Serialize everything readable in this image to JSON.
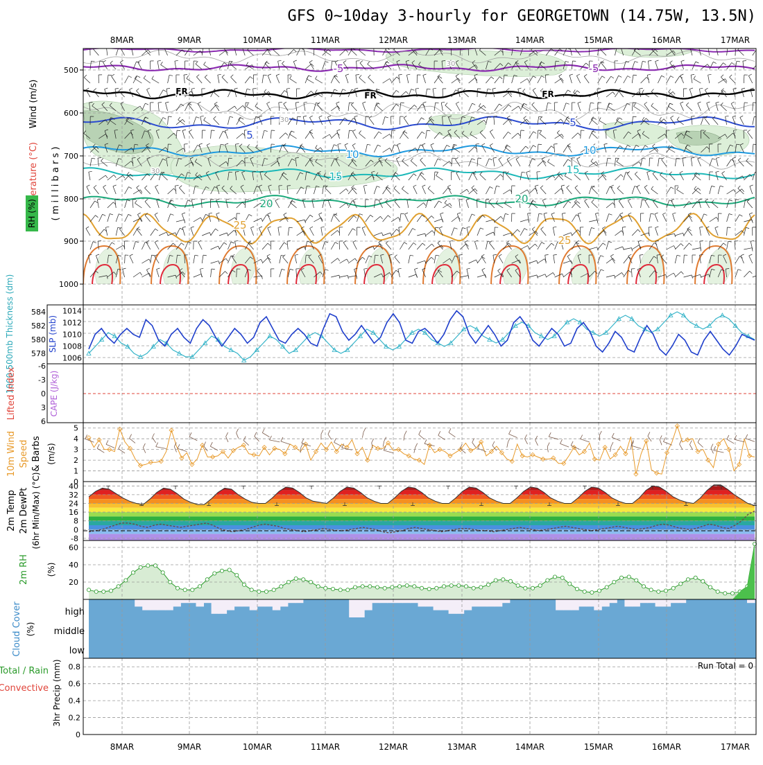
{
  "title": "GFS 0~10day 3-hourly for GEORGETOWN (14.75W, 13.5N)",
  "dates": [
    "8MAR",
    "9MAR",
    "10MAR",
    "11MAR",
    "12MAR",
    "13MAR",
    "14MAR",
    "15MAR",
    "16MAR",
    "17MAR"
  ],
  "panels": {
    "upper": {
      "ylabel_wind": "Wind (m/s)",
      "ylabel_temp": "Temperature (°C)",
      "ylabel_rh": "RH (%)",
      "ylabel_mb": "( m i l l i b a r s )",
      "levels": [
        "500",
        "600",
        "700",
        "800",
        "900",
        "1000"
      ],
      "freezing_label": "FR",
      "isotherm_labels": [
        "-5",
        "-5",
        "5",
        "5",
        "10",
        "10",
        "15",
        "15",
        "20",
        "20",
        "25",
        "25",
        "30",
        "30",
        "30"
      ]
    },
    "slp": {
      "ylabel_thick": "1000-500mb Thickness (dm)",
      "ylabel_slp": "SLP (mb)",
      "thick_ticks": [
        "584",
        "582",
        "580",
        "578"
      ],
      "slp_ticks": [
        "1014",
        "1012",
        "1010",
        "1008",
        "1006"
      ]
    },
    "cape": {
      "ylabel_li": "Lifted Index",
      "ylabel_cape": "CAPE (J/kg)",
      "ticks": [
        "-6",
        "-3",
        "0",
        "3",
        "6"
      ]
    },
    "wind10": {
      "ylabel1": "10m Wind",
      "ylabel2": "Speed",
      "ylabel3": "& Barbs",
      "ylabel_unit": "(m/s)",
      "ticks": [
        "5",
        "4",
        "3",
        "2",
        "1",
        "0"
      ]
    },
    "temp": {
      "ylabel1": "2m Temp",
      "ylabel2": "2m DewPt",
      "ylabel3": "(6hr Min/Max) (°C)",
      "ticks": [
        "40",
        "32",
        "24",
        "16",
        "8",
        "0",
        "-8"
      ]
    },
    "rh": {
      "ylabel": "2m RH",
      "ylabel_unit": "(%)",
      "ticks": [
        "60",
        "40",
        "20"
      ]
    },
    "cloud": {
      "ylabel": "Cloud Cover",
      "ylabel_unit": "(%)",
      "levels": [
        "high",
        "middle",
        "low"
      ]
    },
    "precip": {
      "ylabel1": "Total / Rain",
      "ylabel2": "Convective",
      "ylabel3": "3hr Precip (mm)",
      "ticks": [
        "0.8",
        "0.6",
        "0.4",
        "0.2",
        "0"
      ],
      "run_total": "Run Total = 0"
    }
  },
  "colors": {
    "slp": "#1f3fcc",
    "thickness": "#33b3c8",
    "wind": "#e89a2a",
    "rh_fill": "#d8ecd4",
    "rh_line": "#2a9a2a",
    "cloud": "#6aa8d4",
    "cloud_clear": "#f4eef8",
    "freezing": "#000000"
  },
  "chart_data": [
    {
      "type": "line",
      "name": "SLP panel",
      "x_start": "8MAR",
      "step_hours": 3,
      "series": [
        {
          "name": "SLP (mb)",
          "values": [
            1007.5,
            1010,
            1011,
            1009.5,
            1008.5,
            1010,
            1011,
            1010,
            1009.5,
            1012.5,
            1011.5,
            1009,
            1008,
            1010,
            1011,
            1009.5,
            1008.5,
            1011,
            1012.5,
            1011.5,
            1009.5,
            1008,
            1009.5,
            1011,
            1010,
            1008.5,
            1009.5,
            1012,
            1013,
            1011,
            1009,
            1008.5,
            1010,
            1011,
            1010,
            1008.5,
            1008,
            1011,
            1013.5,
            1013,
            1010.5,
            1009,
            1010,
            1011.5,
            1010,
            1008.5,
            1009.5,
            1012,
            1013.5,
            1012,
            1009,
            1008.5,
            1010.5,
            1011,
            1010,
            1008.5,
            1010,
            1012.5,
            1014,
            1013,
            1010,
            1008.5,
            1010,
            1011.5,
            1010,
            1008,
            1009,
            1012,
            1013,
            1011.5,
            1009,
            1008,
            1009.5,
            1011,
            1010,
            1008,
            1008.5,
            1011,
            1012,
            1010.5,
            1008,
            1007,
            1008.5,
            1010.5,
            1009.5,
            1007.5,
            1007,
            1009.5,
            1011.5,
            1010,
            1007.5,
            1006.5,
            1008,
            1010,
            1009,
            1007,
            1006.5,
            1009,
            1010.5,
            1009,
            1007.5,
            1006.5,
            1008,
            1010,
            1009.5,
            1009
          ]
        },
        {
          "name": "1000-500mb Thickness (dm)",
          "values": [
            578,
            579,
            580,
            581,
            580.5,
            579.5,
            579,
            578,
            577.5,
            578,
            579,
            580,
            579.5,
            578.5,
            578,
            577.5,
            577.5,
            578.5,
            579.5,
            580.5,
            580,
            579,
            578.5,
            578,
            577,
            577.5,
            578.5,
            579.5,
            580.5,
            580,
            579,
            578,
            578.5,
            579.5,
            580.5,
            581,
            580.5,
            579.5,
            578.5,
            578,
            578.5,
            579.5,
            580.5,
            581.5,
            581,
            580,
            579,
            578.5,
            579,
            580,
            581,
            581.5,
            581,
            580,
            579.5,
            579,
            579.5,
            580.5,
            581.5,
            582,
            581.5,
            580.5,
            580,
            579.5,
            580,
            581,
            582,
            582.5,
            582,
            581,
            580.5,
            580,
            580.5,
            581.5,
            582.5,
            583,
            582.5,
            581.5,
            581,
            580.5,
            581,
            582,
            583,
            583.5,
            583,
            582,
            581.5,
            581,
            581.5,
            582.5,
            583.5,
            584,
            583.5,
            582.5,
            582,
            581.5,
            582,
            583,
            583.5,
            583,
            582,
            581,
            580.5,
            580
          ]
        }
      ],
      "slp_range": [
        1005,
        1015
      ],
      "thickness_range": [
        576.5,
        585
      ]
    },
    {
      "type": "line",
      "name": "Lifted Index",
      "ylim": [
        -6,
        6
      ],
      "values": [
        0
      ]
    },
    {
      "type": "line",
      "name": "10m Wind Speed",
      "ylim": [
        0,
        5.5
      ],
      "values": [
        4.1,
        3.2,
        3.9,
        3.0,
        3.0,
        2.8,
        4.9,
        3.7,
        3.1,
        2.1,
        1.5,
        1.6,
        1.8,
        1.8,
        1.9,
        2.8,
        4.8,
        3.3,
        2.2,
        2.7,
        1.6,
        2.1,
        3.4,
        2.3,
        2.3,
        2.4,
        2.8,
        2.2,
        2.9,
        3.2,
        3.4,
        2.6,
        2.5,
        2.4,
        3.2,
        2.5,
        3.1,
        3.0,
        2.6,
        3.5,
        3.2,
        2.8,
        3.5,
        2.0,
        2.8,
        3.6,
        3.0,
        3.7,
        2.8,
        3.5,
        3.2,
        3.9,
        2.6,
        3.2,
        2.0,
        3.4,
        3.1,
        3.1,
        3.6,
        2.9,
        3.0,
        2.6,
        2.4,
        2.1,
        2.0,
        1.6,
        3.4,
        2.7,
        3.0,
        2.8,
        2.4,
        2.7,
        3.0,
        3.6,
        2.9,
        3.1,
        3.7,
        2.4,
        2.8,
        3.3,
        2.7,
        2.1,
        1.9,
        3.5,
        2.4,
        2.3,
        2.5,
        2.3,
        2.1,
        2.1,
        2.2,
        1.7,
        1.7,
        2.4,
        3.2,
        2.5,
        2.8,
        3.6,
        2.1,
        2.0,
        3.2,
        2.1,
        2.5,
        3.3,
        2.6,
        4.2,
        0.7,
        2.6,
        3.8,
        1.1,
        0.8,
        0.7,
        2.7,
        3.7,
        5.2,
        3.7,
        3.9,
        4.0,
        2.8,
        3.0,
        2.0,
        1.3,
        3.5,
        4.0,
        3.0,
        1.0,
        1.6,
        4.0,
        2.4,
        2.3
      ]
    },
    {
      "type": "area",
      "name": "2m Temp",
      "ylim": [
        -10,
        44
      ],
      "x_start": "8MAR",
      "step_hours": 3,
      "series": [
        {
          "name": "2m Temp",
          "values": [
            30,
            35,
            38,
            37,
            33,
            29,
            26,
            24,
            23,
            28,
            34,
            38,
            37,
            33,
            28,
            25,
            23,
            23,
            28,
            34,
            38,
            37,
            32,
            28,
            25,
            24,
            24,
            29,
            35,
            39,
            38,
            34,
            29,
            26,
            25,
            24,
            29,
            35,
            39,
            38,
            34,
            29,
            26,
            24,
            24,
            29,
            35,
            39,
            38,
            34,
            29,
            26,
            24,
            24,
            29,
            35,
            39,
            38,
            34,
            29,
            26,
            24,
            24,
            29,
            35,
            39,
            38,
            34,
            29,
            26,
            24,
            24,
            29,
            35,
            39,
            38,
            34,
            29,
            26,
            24,
            24,
            29,
            36,
            40,
            39,
            35,
            30,
            27,
            25,
            24,
            29,
            36,
            41,
            41,
            37,
            32,
            28,
            24,
            22
          ]
        },
        {
          "name": "2m DewPt",
          "values": [
            -2,
            -1,
            0,
            2,
            4,
            6,
            6,
            5,
            3,
            2,
            4,
            5,
            4,
            3,
            2,
            3,
            4,
            5,
            6,
            4,
            1,
            -1,
            -2,
            -1,
            0,
            2,
            4,
            5,
            4,
            3,
            1,
            0,
            -1,
            -2,
            -1,
            0,
            1,
            0,
            -1,
            -1,
            0,
            1,
            2,
            1,
            0,
            -2,
            -3,
            -2,
            -1,
            1,
            2,
            1,
            0,
            -1,
            -2,
            -1,
            0,
            1,
            1,
            0,
            -1,
            -1,
            -2,
            -1,
            0,
            1,
            2,
            1,
            0,
            -1,
            0,
            1,
            2,
            3,
            2,
            1,
            0,
            -1,
            0,
            1,
            2,
            3,
            2,
            1,
            0,
            1,
            2,
            4,
            5,
            4,
            2,
            1,
            0,
            1,
            3,
            5,
            4,
            2,
            1,
            4,
            8,
            14,
            17
          ]
        }
      ]
    },
    {
      "type": "area",
      "name": "2m RH",
      "ylim": [
        0,
        68
      ],
      "values": [
        11,
        9,
        9,
        10,
        15,
        22,
        31,
        37,
        39,
        39,
        31,
        20,
        13,
        11,
        11,
        15,
        23,
        30,
        33,
        34,
        28,
        17,
        11,
        9,
        9,
        11,
        15,
        20,
        24,
        23,
        20,
        15,
        13,
        12,
        11,
        11,
        14,
        15,
        15,
        14,
        13,
        14,
        15,
        16,
        15,
        13,
        12,
        13,
        15,
        16,
        16,
        15,
        13,
        14,
        17,
        22,
        23,
        21,
        16,
        13,
        13,
        16,
        22,
        26,
        25,
        18,
        12,
        9,
        8,
        10,
        14,
        20,
        25,
        26,
        22,
        15,
        11,
        9,
        10,
        13,
        18,
        23,
        25,
        21,
        14,
        9,
        7,
        7,
        9,
        15,
        64
      ]
    },
    {
      "type": "bar",
      "name": "Cloud Cover",
      "levels": [
        "high",
        "middle",
        "low"
      ],
      "high_values": [
        100,
        100,
        100,
        100,
        100,
        100,
        60,
        40,
        40,
        40,
        40,
        60,
        80,
        80,
        60,
        80,
        20,
        20,
        40,
        60,
        60,
        40,
        60,
        60,
        40,
        60,
        80,
        80,
        100,
        100,
        100,
        100,
        100,
        100,
        0,
        0,
        40,
        80,
        80,
        80,
        80,
        80,
        80,
        60,
        60,
        40,
        40,
        20,
        20,
        40,
        60,
        60,
        60,
        60,
        80,
        100,
        100,
        100,
        100,
        100,
        100,
        40,
        40,
        40,
        60,
        60,
        40,
        60,
        80,
        100,
        60,
        60,
        80,
        80,
        60,
        60,
        80,
        80,
        100,
        100,
        100,
        100,
        100,
        100,
        100,
        100,
        80
      ],
      "middle_values": [
        100
      ],
      "low_values": [
        100
      ]
    },
    {
      "type": "bar",
      "name": "3hr Precip",
      "ylim": [
        0,
        0.9
      ],
      "values": [
        0
      ]
    }
  ]
}
